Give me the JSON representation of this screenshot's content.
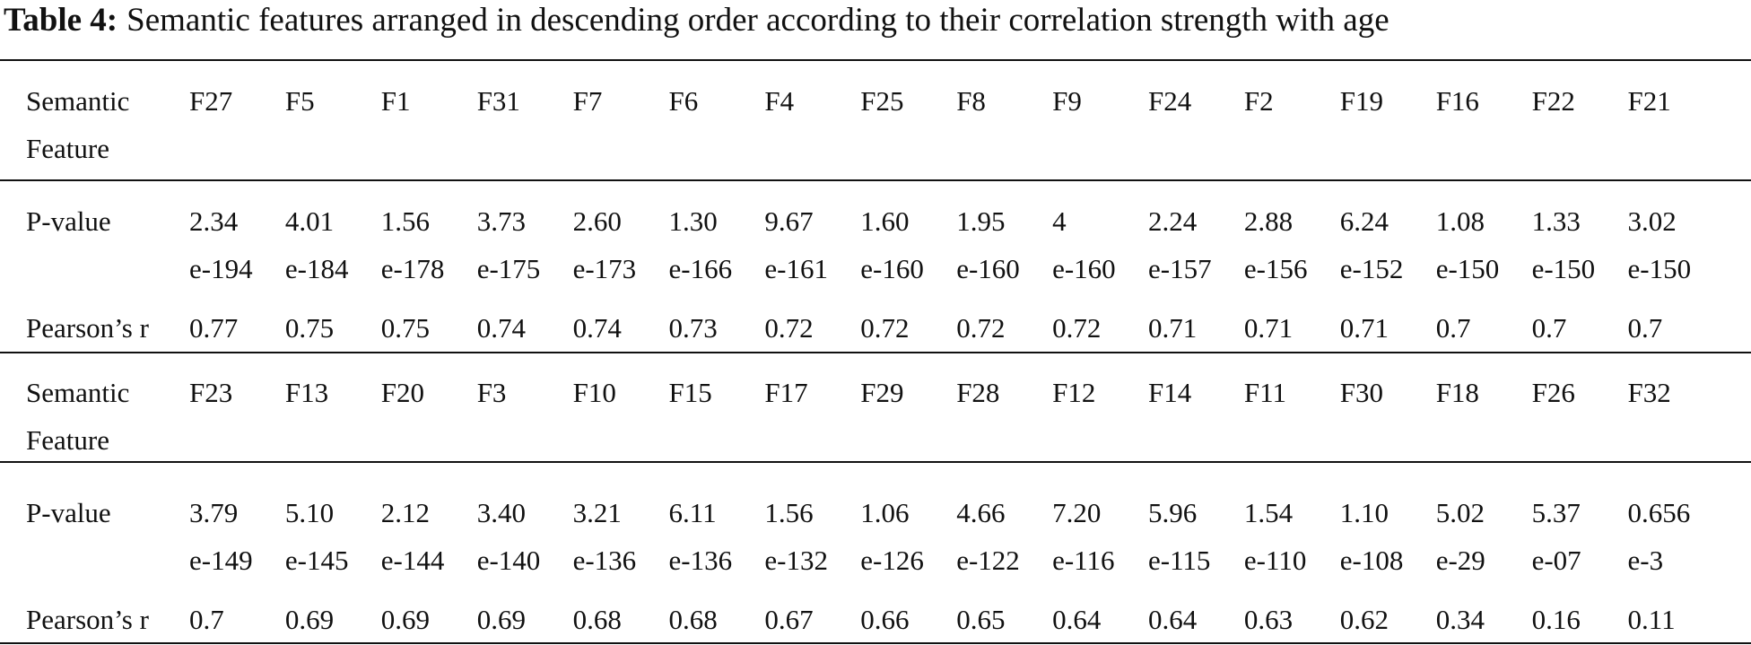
{
  "caption": {
    "label": "Table 4:",
    "text": "Semantic features arranged in descending order according to their correlation strength with age"
  },
  "blocks": [
    {
      "feature_label": [
        "Semantic",
        "Feature"
      ],
      "features": [
        "F27",
        "F5",
        "F1",
        "F31",
        "F7",
        "F6",
        "F4",
        "F25",
        "F8",
        "F9",
        "F24",
        "F2",
        "F19",
        "F16",
        "F22",
        "F21"
      ],
      "pvalue_label": "P-value",
      "pvalues": [
        [
          "2.34",
          "e-194"
        ],
        [
          "4.01",
          "e-184"
        ],
        [
          "1.56",
          "e-178"
        ],
        [
          "3.73",
          "e-175"
        ],
        [
          "2.60",
          "e-173"
        ],
        [
          "1.30",
          "e-166"
        ],
        [
          "9.67",
          "e-161"
        ],
        [
          "1.60",
          "e-160"
        ],
        [
          "1.95",
          "e-160"
        ],
        [
          "4",
          "e-160"
        ],
        [
          "2.24",
          "e-157"
        ],
        [
          "2.88",
          "e-156"
        ],
        [
          "6.24",
          "e-152"
        ],
        [
          "1.08",
          "e-150"
        ],
        [
          "1.33",
          "e-150"
        ],
        [
          "3.02",
          "e-150"
        ]
      ],
      "r_label": "Pearson’s r",
      "r": [
        "0.77",
        "0.75",
        "0.75",
        "0.74",
        "0.74",
        "0.73",
        "0.72",
        "0.72",
        "0.72",
        "0.72",
        "0.71",
        "0.71",
        "0.71",
        "0.7",
        "0.7",
        "0.7"
      ]
    },
    {
      "feature_label": [
        "Semantic",
        "Feature"
      ],
      "features": [
        "F23",
        "F13",
        "F20",
        "F3",
        "F10",
        "F15",
        "F17",
        "F29",
        "F28",
        "F12",
        "F14",
        "F11",
        "F30",
        "F18",
        "F26",
        "F32"
      ],
      "pvalue_label": "P-value",
      "pvalues": [
        [
          "3.79",
          "e-149"
        ],
        [
          "5.10",
          "e-145"
        ],
        [
          "2.12",
          "e-144"
        ],
        [
          "3.40",
          "e-140"
        ],
        [
          "3.21",
          "e-136"
        ],
        [
          "6.11",
          "e-136"
        ],
        [
          "1.56",
          "e-132"
        ],
        [
          "1.06",
          "e-126"
        ],
        [
          "4.66",
          "e-122"
        ],
        [
          "7.20",
          "e-116"
        ],
        [
          "5.96",
          "e-115"
        ],
        [
          "1.54",
          "e-110"
        ],
        [
          "1.10",
          "e-108"
        ],
        [
          "5.02",
          "e-29"
        ],
        [
          "5.37",
          "e-07"
        ],
        [
          "0.656",
          "e-3"
        ]
      ],
      "r_label": "Pearson’s r",
      "r": [
        "0.7",
        "0.69",
        "0.69",
        "0.69",
        "0.68",
        "0.68",
        "0.67",
        "0.66",
        "0.65",
        "0.64",
        "0.64",
        "0.63",
        "0.62",
        "0.34",
        "0.16",
        "0.11"
      ]
    }
  ]
}
